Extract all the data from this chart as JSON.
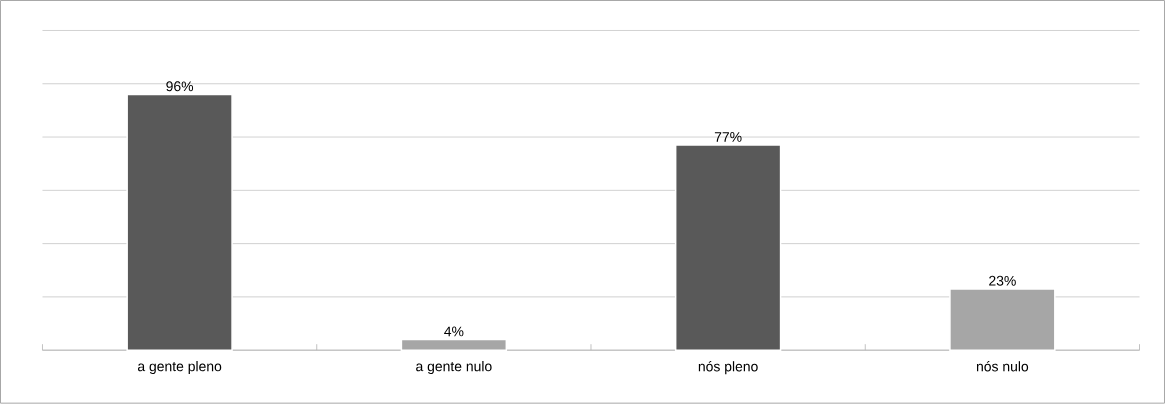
{
  "chart_data": {
    "type": "bar",
    "categories": [
      "a gente pleno",
      "a gente nulo",
      "nós pleno",
      "nós nulo"
    ],
    "values": [
      96,
      4,
      77,
      23
    ],
    "colors": [
      "#595959",
      "#a6a6a6",
      "#595959",
      "#a6a6a6"
    ],
    "value_labels": [
      "96%",
      "4%",
      "77%",
      "23%"
    ],
    "grid": "y",
    "tick_labels": "x"
  }
}
